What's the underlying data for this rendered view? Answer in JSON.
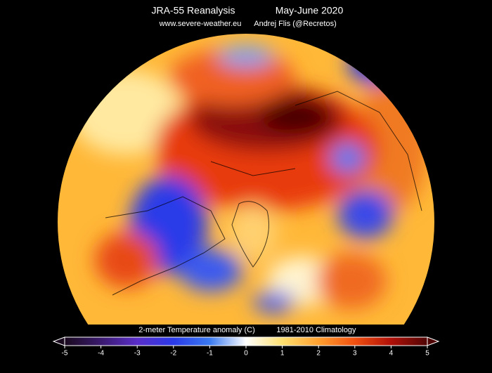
{
  "header": {
    "title": "JRA-55 Reanalysis",
    "period": "May-June 2020",
    "website": "www.severe-weather.eu",
    "author": "Andrej Flis (@Recretos)"
  },
  "colorbar": {
    "label": "2-meter Temperature anomaly (C)",
    "climatology": "1981-2010 Climatology",
    "lim": [
      -5,
      5
    ],
    "ticks": [
      -5,
      -4,
      -3,
      -2,
      -1,
      0,
      1,
      2,
      3,
      4,
      5
    ],
    "colors": [
      "#1a0a1e",
      "#3a1a6e",
      "#5a2ec8",
      "#2a3ae8",
      "#3a7af0",
      "#ffffff",
      "#ffe070",
      "#ffa030",
      "#f05010",
      "#b01008",
      "#500505"
    ]
  }
}
